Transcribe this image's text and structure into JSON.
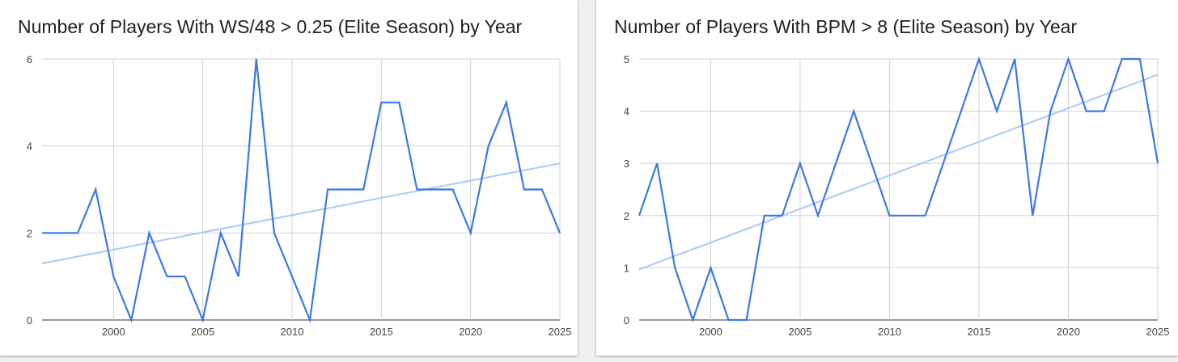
{
  "chart_data": [
    {
      "type": "line",
      "title": "Number of Players With WS/48 > 0.25 (Elite Season) by Year",
      "xlabel": "",
      "ylabel": "",
      "xlim": [
        1996,
        2025
      ],
      "ylim": [
        0,
        6
      ],
      "x_ticks": [
        "2000",
        "2005",
        "2010",
        "2015",
        "2020",
        "2025"
      ],
      "y_ticks": [
        "0",
        "2",
        "4",
        "6"
      ],
      "grid": true,
      "line_color": "#3c78e6",
      "trend_color": "#a9c9f5",
      "series": [
        {
          "x": [
            1996,
            1997,
            1998,
            1999,
            2000,
            2001,
            2002,
            2003,
            2004,
            2005,
            2006,
            2007,
            2008,
            2009,
            2010,
            2011,
            2012,
            2013,
            2014,
            2015,
            2016,
            2017,
            2018,
            2019,
            2020,
            2021,
            2022,
            2023,
            2024,
            2025
          ],
          "values": [
            2,
            2,
            2,
            3,
            1,
            0,
            2,
            1,
            1,
            0,
            2,
            1,
            6,
            2,
            1,
            0,
            3,
            3,
            3,
            5,
            5,
            3,
            3,
            3,
            2,
            4,
            5,
            3,
            3,
            2
          ]
        }
      ],
      "trendline": {
        "x": [
          1996,
          2025
        ],
        "y": [
          1.3,
          3.6
        ]
      }
    },
    {
      "type": "line",
      "title": "Number of Players With BPM > 8 (Elite Season) by Year",
      "xlabel": "",
      "ylabel": "",
      "xlim": [
        1996,
        2025
      ],
      "ylim": [
        0,
        5
      ],
      "x_ticks": [
        "2000",
        "2005",
        "2010",
        "2015",
        "2020",
        "2025"
      ],
      "y_ticks": [
        "0",
        "1",
        "2",
        "3",
        "4",
        "5"
      ],
      "grid": true,
      "line_color": "#3c78e6",
      "trend_color": "#a9c9f5",
      "series": [
        {
          "x": [
            1996,
            1997,
            1998,
            1999,
            2000,
            2001,
            2002,
            2003,
            2004,
            2005,
            2006,
            2007,
            2008,
            2009,
            2010,
            2011,
            2012,
            2013,
            2014,
            2015,
            2016,
            2017,
            2018,
            2019,
            2020,
            2021,
            2022,
            2023,
            2024,
            2025
          ],
          "values": [
            2,
            3,
            1,
            0,
            1,
            0,
            0,
            2,
            2,
            3,
            2,
            3,
            4,
            3,
            2,
            2,
            2,
            3,
            4,
            5,
            4,
            5,
            2,
            4,
            5,
            4,
            4,
            5,
            5,
            3
          ]
        }
      ],
      "trendline": {
        "x": [
          1996,
          2025
        ],
        "y": [
          0.97,
          4.7
        ]
      }
    }
  ]
}
